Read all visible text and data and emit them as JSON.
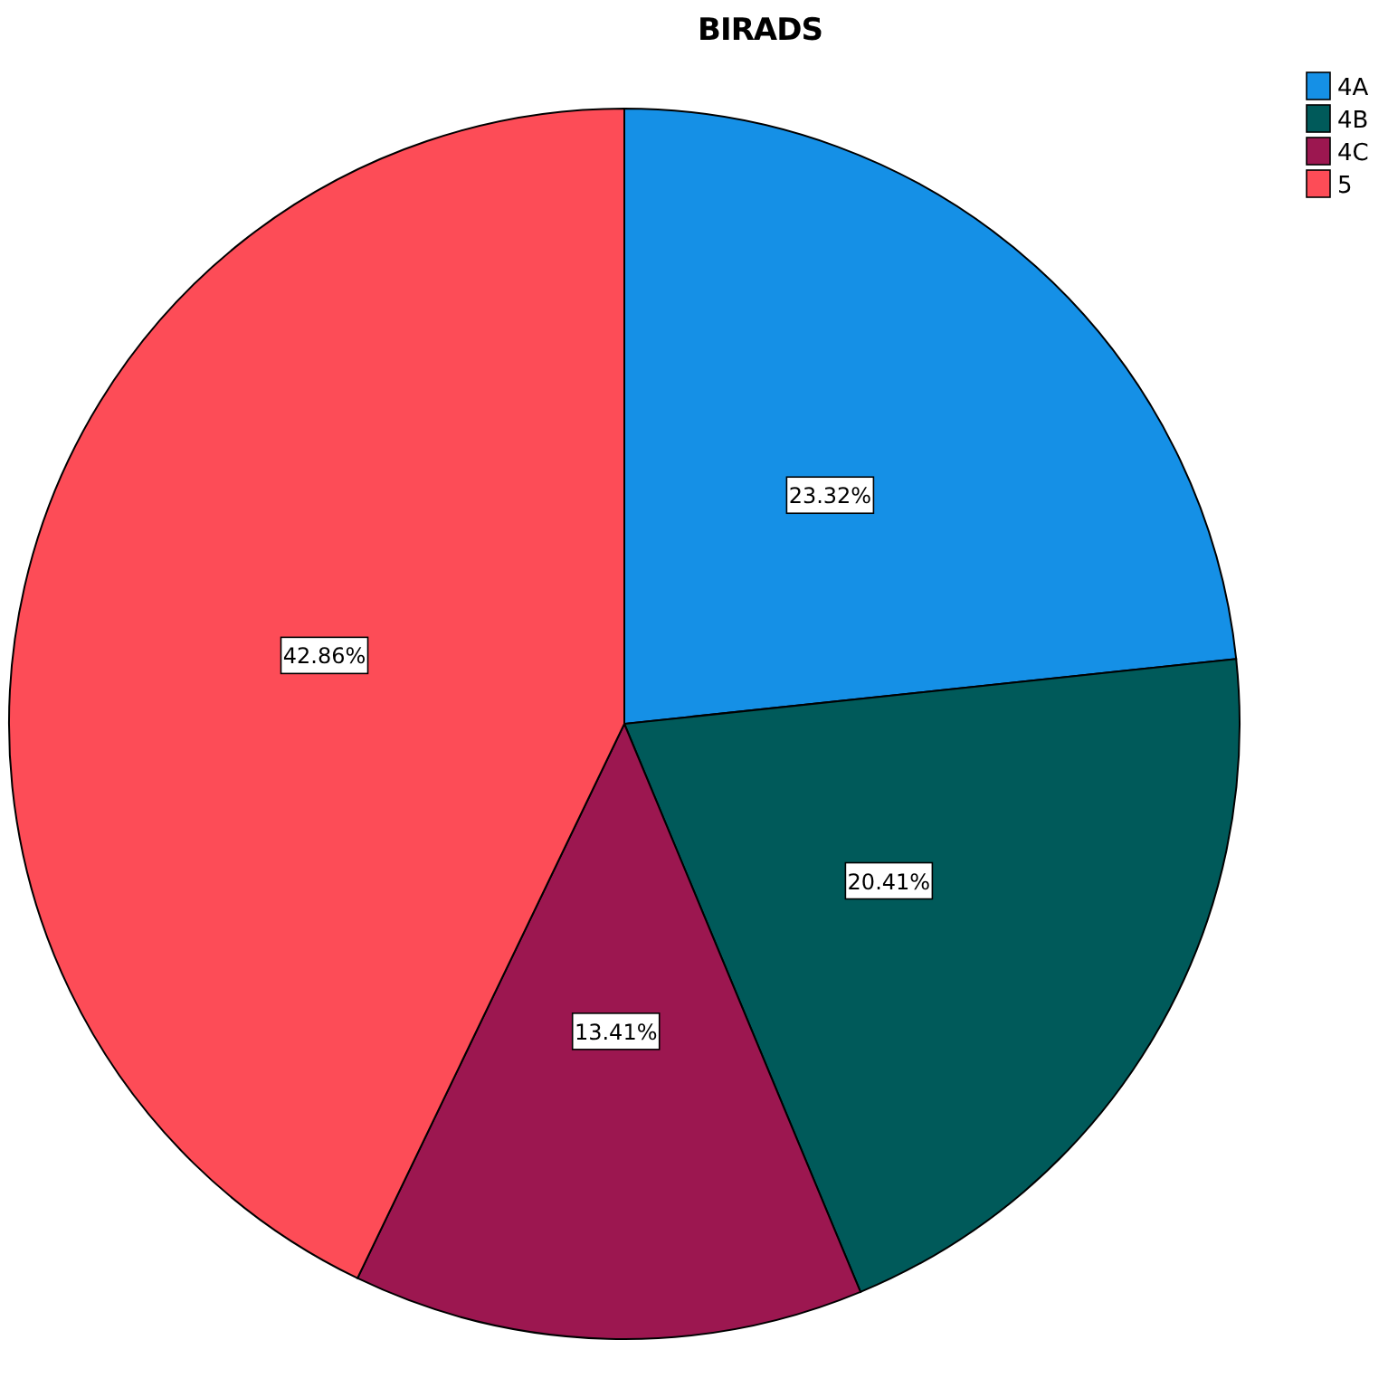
{
  "chart_data": {
    "type": "pie",
    "title": "BIRADS",
    "categories": [
      "4A",
      "4B",
      "4C",
      "5"
    ],
    "values": [
      23.32,
      20.41,
      13.41,
      42.86
    ],
    "colors": [
      "#1590e6",
      "#005a5a",
      "#9c1750",
      "#fd4c57"
    ],
    "value_labels": [
      "23.32%",
      "20.41%",
      "13.41%",
      "42.86%"
    ],
    "legend": "top right"
  }
}
